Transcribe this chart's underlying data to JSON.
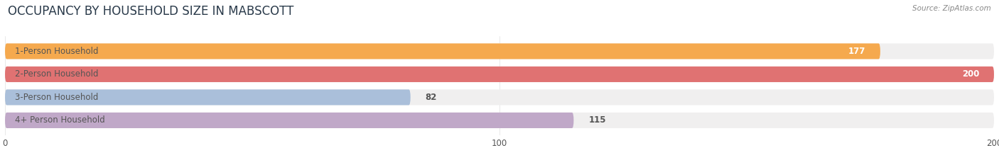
{
  "title": "OCCUPANCY BY HOUSEHOLD SIZE IN MABSCOTT",
  "source": "Source: ZipAtlas.com",
  "categories": [
    "1-Person Household",
    "2-Person Household",
    "3-Person Household",
    "4+ Person Household"
  ],
  "values": [
    177,
    200,
    82,
    115
  ],
  "bar_colors": [
    "#F5A94E",
    "#E07272",
    "#AABFDA",
    "#C0A8C8"
  ],
  "bar_bg_colors": [
    "#F0EFEF",
    "#F0EFEF",
    "#F0EFEF",
    "#F0EFEF"
  ],
  "xlim": [
    0,
    200
  ],
  "xticks": [
    0,
    100,
    200
  ],
  "label_color": "#555555",
  "value_color_inside": "#ffffff",
  "value_color_outside": "#555555",
  "title_fontsize": 12,
  "label_fontsize": 8.5,
  "value_fontsize": 8.5,
  "background_color": "#ffffff",
  "bar_height": 0.68,
  "bar_gap": 1.0,
  "rounding_size": 0.35
}
